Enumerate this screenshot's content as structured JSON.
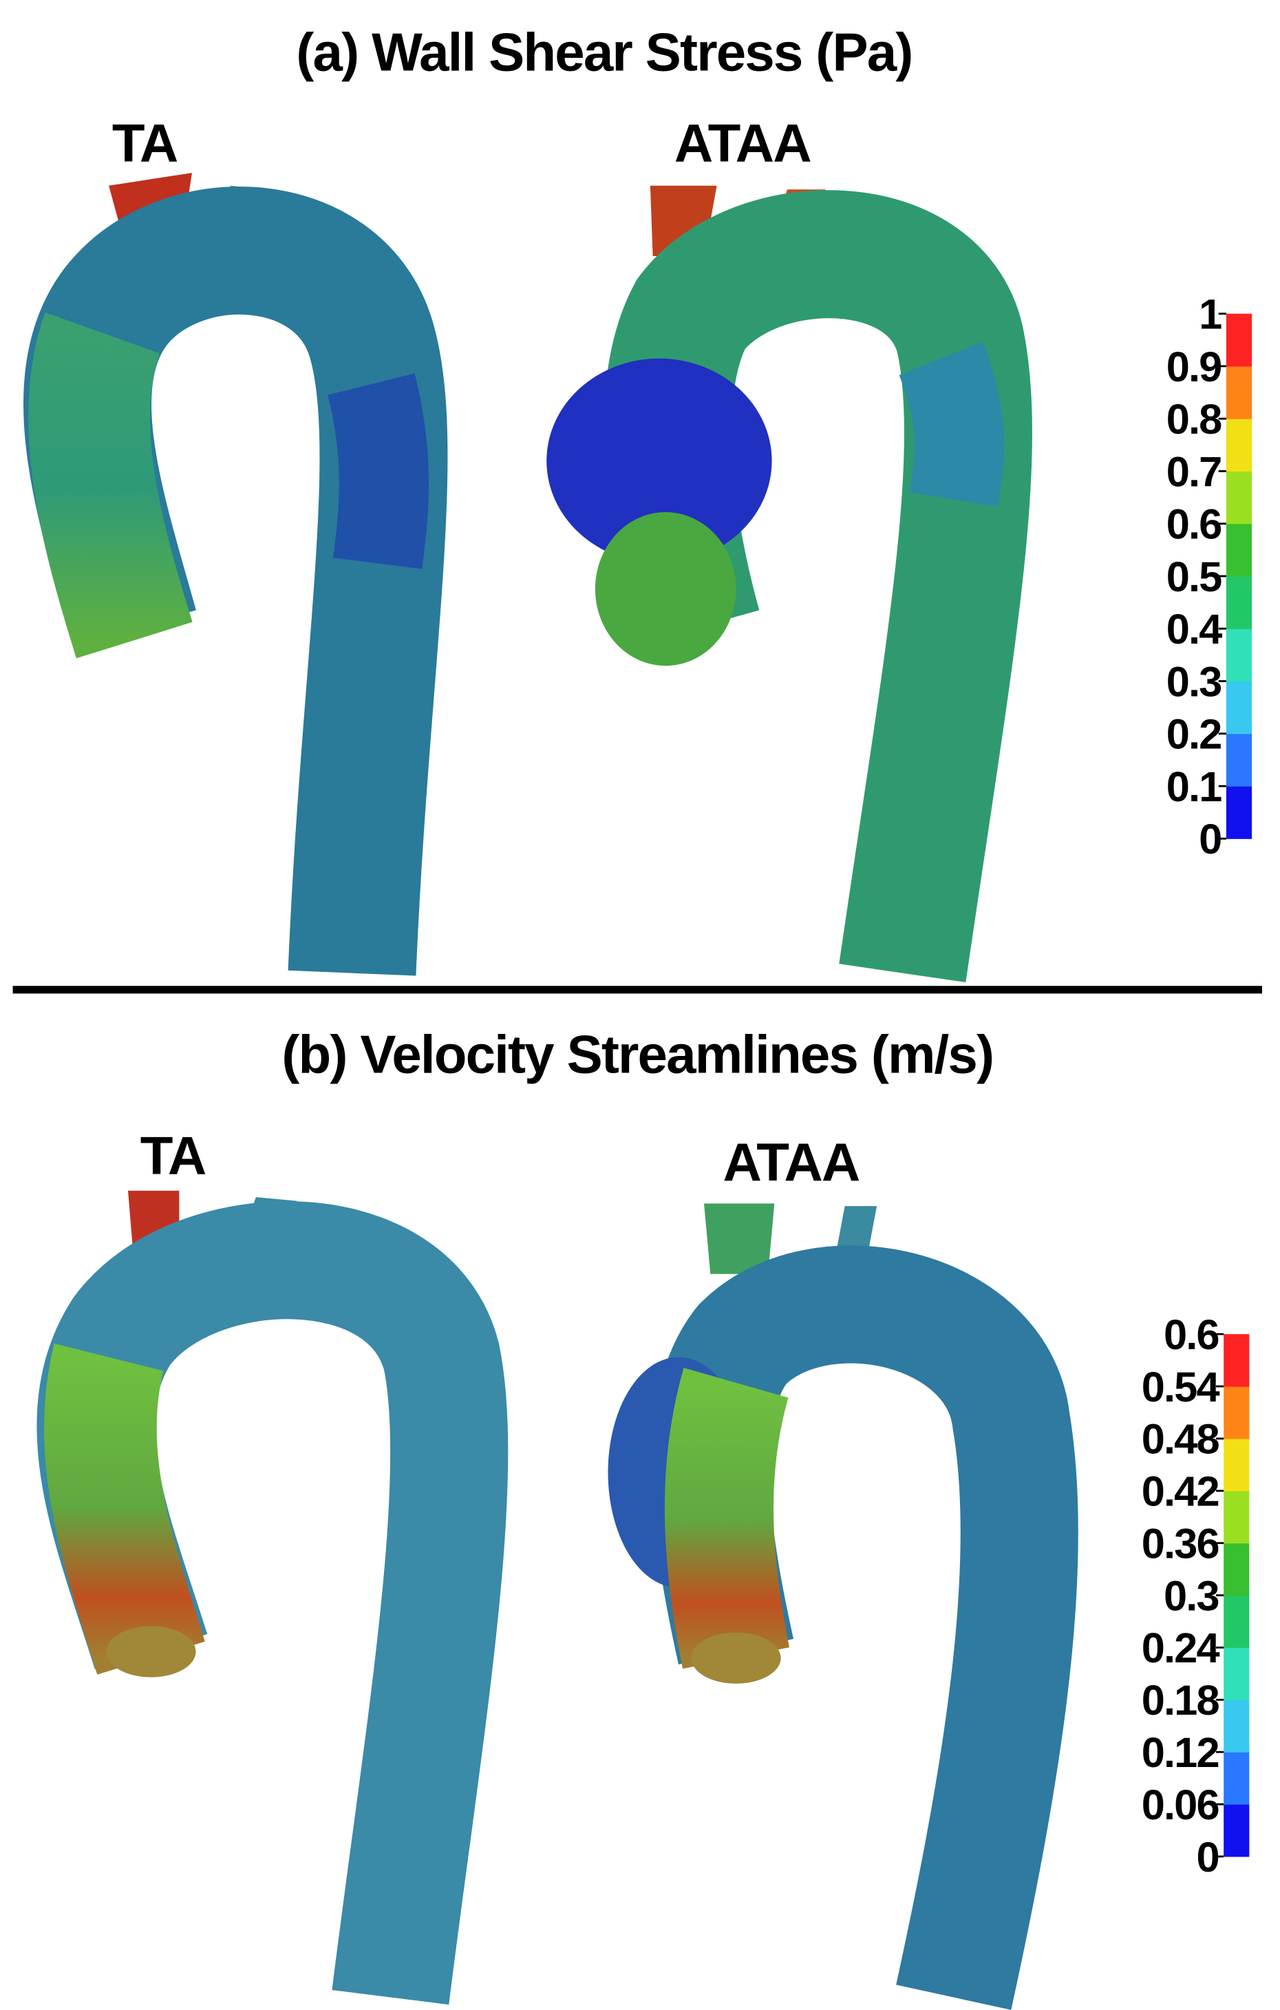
{
  "panels": [
    {
      "title": "(a) Wall Shear Stress (Pa)",
      "labels": [
        "TA",
        "ATAA"
      ],
      "colorbar": {
        "ticks": [
          0,
          0.1,
          0.2,
          0.3,
          0.4,
          0.5,
          0.6,
          0.7,
          0.8,
          0.9,
          1
        ],
        "colors": [
          "#1010f0",
          "#2a78ff",
          "#38c8f0",
          "#30e0b8",
          "#22c868",
          "#38c030",
          "#9ae020",
          "#f2e014",
          "#ff8418",
          "#ff2222"
        ]
      }
    },
    {
      "title": "(b) Velocity Streamlines (m/s)",
      "labels": [
        "TA",
        "ATAA"
      ],
      "colorbar": {
        "ticks": [
          0,
          0.06,
          0.12,
          0.18,
          0.24,
          0.3,
          0.36,
          0.42,
          0.48,
          0.54,
          0.6
        ],
        "colors": [
          "#1010f0",
          "#2a78ff",
          "#38c8f0",
          "#30e0b8",
          "#22c868",
          "#38c030",
          "#9ae020",
          "#f2e014",
          "#ff8418",
          "#ff2222"
        ]
      }
    }
  ]
}
